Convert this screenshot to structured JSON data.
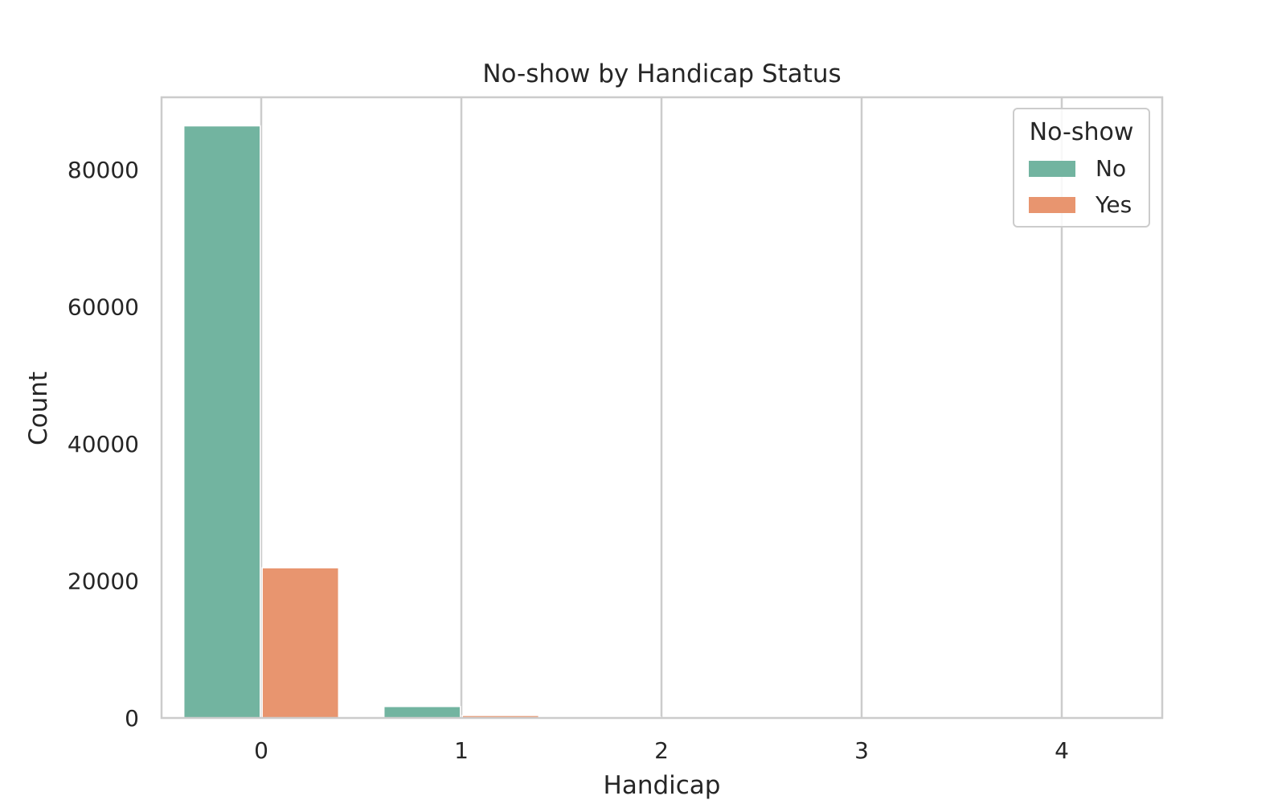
{
  "chart_data": {
    "type": "bar",
    "title": "No-show by Handicap Status",
    "xlabel": "Handicap",
    "ylabel": "Count",
    "categories": [
      "0",
      "1",
      "2",
      "3",
      "4"
    ],
    "series": [
      {
        "name": "No",
        "color": "#72b4a0",
        "values": [
          86374,
          1676,
          146,
          8,
          2
        ]
      },
      {
        "name": "Yes",
        "color": "#e8956f",
        "values": [
          21912,
          366,
          37,
          3,
          1
        ]
      }
    ],
    "yticks": [
      0,
      20000,
      40000,
      60000,
      80000
    ],
    "ylim": [
      0,
      90540
    ],
    "legend": {
      "title": "No-show",
      "position": "top-right"
    },
    "grid": "vertical"
  }
}
